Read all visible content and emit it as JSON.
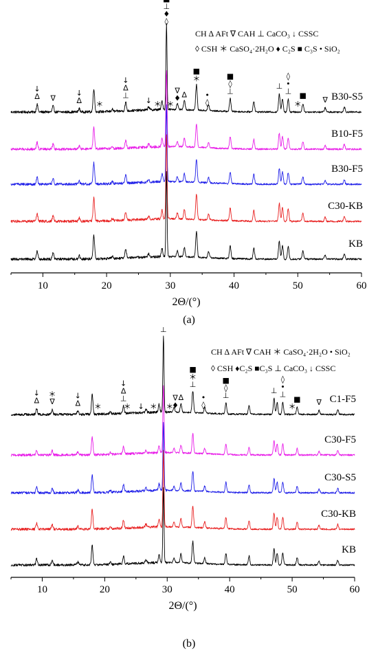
{
  "chart_data": [
    {
      "type": "line",
      "panel_label": "(a)",
      "panel_letter": "a",
      "xlabel": "2Θ/(°)",
      "xlim": [
        5,
        60
      ],
      "x_ticks": [
        10,
        20,
        30,
        40,
        50,
        60
      ],
      "grid": false,
      "legend_position": "top-right",
      "legend": [
        "CH  ∆ AFt  ∇ CAH  ⊥ CaCO₃ ↓ CSSC",
        "◊ CSH ＊ CaSO₄·2H₂O ♦ C₂S ■ C₃S • SiO₂"
      ],
      "series": [
        {
          "name": "B30-S5",
          "color": "#000000",
          "offset": 4
        },
        {
          "name": "B10-F5",
          "color": "#e81ce8",
          "offset": 3
        },
        {
          "name": "B30-F5",
          "color": "#1f1fe8",
          "offset": 2
        },
        {
          "name": "C30-KB",
          "color": "#e82020",
          "offset": 1
        },
        {
          "name": "KB",
          "color": "#000000",
          "offset": 0
        }
      ],
      "peaks": [
        {
          "x": 9.1,
          "h": 0.18
        },
        {
          "x": 11.6,
          "h": 0.14
        },
        {
          "x": 15.7,
          "h": 0.08
        },
        {
          "x": 18.0,
          "h": 0.55
        },
        {
          "x": 20.9,
          "h": 0.05
        },
        {
          "x": 23.0,
          "h": 0.2
        },
        {
          "x": 26.6,
          "h": 0.08
        },
        {
          "x": 28.7,
          "h": 0.2
        },
        {
          "x": 29.4,
          "h": 2.0
        },
        {
          "x": 31.1,
          "h": 0.14
        },
        {
          "x": 32.2,
          "h": 0.22
        },
        {
          "x": 34.1,
          "h": 0.6
        },
        {
          "x": 36.0,
          "h": 0.14
        },
        {
          "x": 39.4,
          "h": 0.3
        },
        {
          "x": 43.1,
          "h": 0.25
        },
        {
          "x": 47.1,
          "h": 0.42
        },
        {
          "x": 47.6,
          "h": 0.32
        },
        {
          "x": 48.5,
          "h": 0.3
        },
        {
          "x": 50.8,
          "h": 0.2
        },
        {
          "x": 54.3,
          "h": 0.1
        },
        {
          "x": 57.3,
          "h": 0.12
        }
      ],
      "markers": [
        {
          "x": 9.1,
          "glyphs": [
            "↓",
            "∆"
          ]
        },
        {
          "x": 11.6,
          "glyphs": [
            "∇"
          ]
        },
        {
          "x": 15.7,
          "glyphs": [
            "↓",
            "∆"
          ]
        },
        {
          "x": 18.9,
          "glyphs": [
            "＊"
          ]
        },
        {
          "x": 23.0,
          "glyphs": [
            "↓",
            "∆",
            "⊥"
          ]
        },
        {
          "x": 26.6,
          "glyphs": [
            "↓"
          ]
        },
        {
          "x": 28.0,
          "glyphs": [
            "＊"
          ]
        },
        {
          "x": 29.4,
          "glyphs": [
            "■",
            "⊥",
            "♦",
            "◊"
          ]
        },
        {
          "x": 30.0,
          "glyphs": [
            "＊"
          ]
        },
        {
          "x": 31.1,
          "glyphs": [
            "∇",
            "♦"
          ]
        },
        {
          "x": 32.2,
          "glyphs": [
            "∆"
          ]
        },
        {
          "x": 34.1,
          "glyphs": [
            "■",
            "＊"
          ]
        },
        {
          "x": 35.8,
          "glyphs": [
            "•",
            "◊"
          ]
        },
        {
          "x": 39.4,
          "glyphs": [
            "■",
            "◊",
            "⊥"
          ]
        },
        {
          "x": 47.1,
          "glyphs": [
            "⊥"
          ]
        },
        {
          "x": 48.5,
          "glyphs": [
            "◊",
            "•",
            "⊥"
          ]
        },
        {
          "x": 50.0,
          "glyphs": [
            "＊"
          ]
        },
        {
          "x": 50.8,
          "glyphs": [
            "■"
          ]
        },
        {
          "x": 54.3,
          "glyphs": [
            "∇"
          ]
        }
      ]
    },
    {
      "type": "line",
      "panel_label": "(b)",
      "panel_letter": "b",
      "xlabel": "2Θ/(°)",
      "xlim": [
        5,
        60
      ],
      "x_ticks": [
        10,
        20,
        30,
        40,
        50,
        60
      ],
      "grid": false,
      "legend_position": "top-right",
      "legend": [
        "CH  ∆ AFt ∇ CAH ＊ CaSO₄·2H₂O • SiO₂",
        "◊ CSH  ♦C₂S  ■C₃S ⊥ CaCO₃  ↓ CSSC"
      ],
      "series": [
        {
          "name": "C1-F5",
          "color": "#000000",
          "offset": 4
        },
        {
          "name": "C30-F5",
          "color": "#e81ce8",
          "offset": 3
        },
        {
          "name": "C30-S5",
          "color": "#1f1fe8",
          "offset": 2
        },
        {
          "name": "C30-KB",
          "color": "#e82020",
          "offset": 1
        },
        {
          "name": "KB",
          "color": "#000000",
          "offset": 0
        }
      ],
      "peaks": [
        {
          "x": 9.1,
          "h": 0.15
        },
        {
          "x": 11.6,
          "h": 0.12
        },
        {
          "x": 15.7,
          "h": 0.08
        },
        {
          "x": 18.0,
          "h": 0.5
        },
        {
          "x": 20.9,
          "h": 0.05
        },
        {
          "x": 23.0,
          "h": 0.2
        },
        {
          "x": 26.6,
          "h": 0.08
        },
        {
          "x": 28.7,
          "h": 0.2
        },
        {
          "x": 29.4,
          "h": 1.9
        },
        {
          "x": 31.1,
          "h": 0.12
        },
        {
          "x": 32.2,
          "h": 0.22
        },
        {
          "x": 34.1,
          "h": 0.55
        },
        {
          "x": 36.0,
          "h": 0.15
        },
        {
          "x": 39.4,
          "h": 0.28
        },
        {
          "x": 43.1,
          "h": 0.22
        },
        {
          "x": 47.1,
          "h": 0.4
        },
        {
          "x": 47.6,
          "h": 0.3
        },
        {
          "x": 48.5,
          "h": 0.3
        },
        {
          "x": 50.8,
          "h": 0.18
        },
        {
          "x": 54.3,
          "h": 0.1
        },
        {
          "x": 57.3,
          "h": 0.12
        }
      ],
      "markers": [
        {
          "x": 9.1,
          "glyphs": [
            "↓",
            "∆"
          ]
        },
        {
          "x": 11.6,
          "glyphs": [
            "＊",
            "∇"
          ]
        },
        {
          "x": 15.7,
          "glyphs": [
            "↓",
            "∆"
          ]
        },
        {
          "x": 18.9,
          "glyphs": [
            "＊"
          ]
        },
        {
          "x": 23.0,
          "glyphs": [
            "↓",
            "∆",
            "⊥"
          ]
        },
        {
          "x": 23.6,
          "glyphs": [
            "＊"
          ]
        },
        {
          "x": 25.8,
          "glyphs": [
            "↓"
          ]
        },
        {
          "x": 27.8,
          "glyphs": [
            "＊"
          ]
        },
        {
          "x": 29.4,
          "glyphs": [
            "■",
            "♦",
            "◊",
            "⊥"
          ]
        },
        {
          "x": 30.4,
          "glyphs": [
            "＊"
          ]
        },
        {
          "x": 31.3,
          "glyphs": [
            "∇",
            "♦"
          ]
        },
        {
          "x": 32.2,
          "glyphs": [
            "∆"
          ]
        },
        {
          "x": 34.1,
          "glyphs": [
            "■",
            "＊",
            "⊥"
          ]
        },
        {
          "x": 35.8,
          "glyphs": [
            "•",
            "◊"
          ]
        },
        {
          "x": 39.4,
          "glyphs": [
            "■",
            "◊",
            "⊥"
          ]
        },
        {
          "x": 47.1,
          "glyphs": [
            "⊥"
          ]
        },
        {
          "x": 48.5,
          "glyphs": [
            "◊",
            "•",
            "⊥"
          ]
        },
        {
          "x": 50.0,
          "glyphs": [
            "＊"
          ]
        },
        {
          "x": 50.8,
          "glyphs": [
            "■"
          ]
        },
        {
          "x": 54.3,
          "glyphs": [
            "∇"
          ]
        }
      ]
    }
  ]
}
